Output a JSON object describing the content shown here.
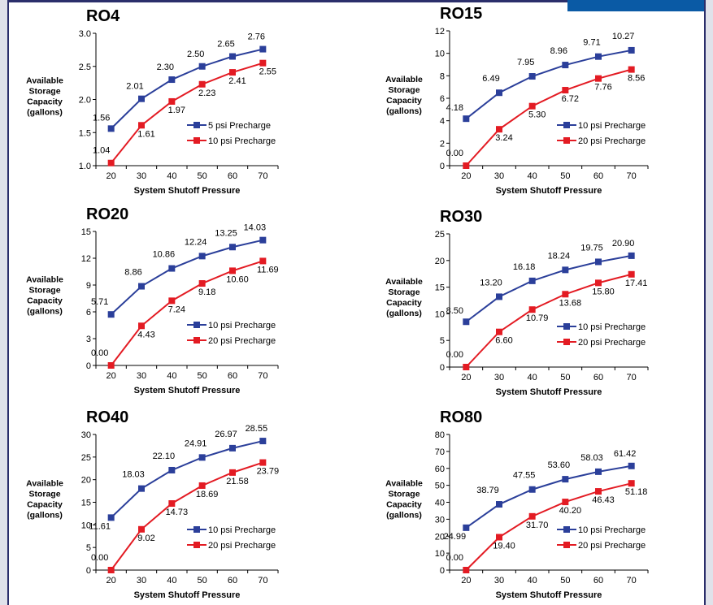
{
  "colors": {
    "series1": "#2b3f9a",
    "series2": "#e31b23",
    "axis": "#000000",
    "frame": "#2b2f6b",
    "accent": "#0a5aa5"
  },
  "chart_data": [
    {
      "type": "line",
      "title": "RO4",
      "xlabel": "System Shutoff Pressure",
      "ylabel": "Available Storage Capacity (gallons)",
      "x": [
        20,
        30,
        40,
        50,
        60,
        70
      ],
      "xticks": [
        "20",
        "30",
        "40",
        "50",
        "60",
        "70"
      ],
      "ylim": [
        1.0,
        3.0
      ],
      "yticks": [
        "1.0",
        "1.5",
        "2.0",
        "2.5",
        "3.0"
      ],
      "legend": "lower-right",
      "series": [
        {
          "name": "5 psi Precharge",
          "values": [
            1.56,
            2.01,
            2.3,
            2.5,
            2.65,
            2.76
          ],
          "labels": [
            "1.56",
            "2.01",
            "2.30",
            "2.50",
            "2.65",
            "2.76"
          ]
        },
        {
          "name": "10 psi Precharge",
          "values": [
            1.04,
            1.61,
            1.97,
            2.23,
            2.41,
            2.55
          ],
          "labels": [
            "1.04",
            "1.61",
            "1.97",
            "2.23",
            "2.41",
            "2.55"
          ]
        }
      ]
    },
    {
      "type": "line",
      "title": "RO15",
      "xlabel": "System Shutoff Pressure",
      "ylabel": "Available Storage Capacity (gallons)",
      "x": [
        20,
        30,
        40,
        50,
        60,
        70
      ],
      "xticks": [
        "20",
        "30",
        "40",
        "50",
        "60",
        "70"
      ],
      "ylim": [
        0,
        12
      ],
      "yticks": [
        "0",
        "2",
        "4",
        "6",
        "8",
        "10",
        "12"
      ],
      "legend": "lower-right",
      "series": [
        {
          "name": "10 psi Precharge",
          "values": [
            4.18,
            6.49,
            7.95,
            8.96,
            9.71,
            10.27
          ],
          "labels": [
            "4.18",
            "6.49",
            "7.95",
            "8.96",
            "9.71",
            "10.27"
          ]
        },
        {
          "name": "20 psi Precharge",
          "values": [
            0.0,
            3.24,
            5.3,
            6.72,
            7.76,
            8.56
          ],
          "labels": [
            "0.00",
            "3.24",
            "5.30",
            "6.72",
            "7.76",
            "8.56"
          ]
        }
      ]
    },
    {
      "type": "line",
      "title": "RO20",
      "xlabel": "System Shutoff Pressure",
      "ylabel": "Available Storage Capacity (gallons)",
      "x": [
        20,
        30,
        40,
        50,
        60,
        70
      ],
      "xticks": [
        "20",
        "30",
        "40",
        "50",
        "60",
        "70"
      ],
      "ylim": [
        0,
        15
      ],
      "yticks": [
        "0",
        "3",
        "6",
        "9",
        "12",
        "15"
      ],
      "legend": "lower-right",
      "series": [
        {
          "name": "10 psi Precharge",
          "values": [
            5.71,
            8.86,
            10.86,
            12.24,
            13.25,
            14.03
          ],
          "labels": [
            "5.71",
            "8.86",
            "10.86",
            "12.24",
            "13.25",
            "14.03"
          ]
        },
        {
          "name": "20 psi Precharge",
          "values": [
            0.0,
            4.43,
            7.24,
            9.18,
            10.6,
            11.69
          ],
          "labels": [
            "0.00",
            "4.43",
            "7.24",
            "9.18",
            "10.60",
            "11.69"
          ]
        }
      ]
    },
    {
      "type": "line",
      "title": "RO30",
      "xlabel": "System Shutoff Pressure",
      "ylabel": "Available Storage Capacity (gallons)",
      "x": [
        20,
        30,
        40,
        50,
        60,
        70
      ],
      "xticks": [
        "20",
        "30",
        "40",
        "50",
        "60",
        "70"
      ],
      "ylim": [
        0,
        25
      ],
      "yticks": [
        "0",
        "5",
        "10",
        "15",
        "20",
        "25"
      ],
      "legend": "lower-right",
      "series": [
        {
          "name": "10 psi Precharge",
          "values": [
            8.5,
            13.2,
            16.18,
            18.24,
            19.75,
            20.9
          ],
          "labels": [
            "8.50",
            "13.20",
            "16.18",
            "18.24",
            "19.75",
            "20.90"
          ]
        },
        {
          "name": "20 psi Precharge",
          "values": [
            0.0,
            6.6,
            10.79,
            13.68,
            15.8,
            17.41
          ],
          "labels": [
            "0.00",
            "6.60",
            "10.79",
            "13.68",
            "15.80",
            "17.41"
          ]
        }
      ]
    },
    {
      "type": "line",
      "title": "RO40",
      "xlabel": "System Shutoff Pressure",
      "ylabel": "Available Storage Capacity (gallons)",
      "x": [
        20,
        30,
        40,
        50,
        60,
        70
      ],
      "xticks": [
        "20",
        "30",
        "40",
        "50",
        "60",
        "70"
      ],
      "ylim": [
        0,
        30
      ],
      "yticks": [
        "0",
        "5",
        "10",
        "15",
        "20",
        "25",
        "30"
      ],
      "legend": "lower-right",
      "series": [
        {
          "name": "10 psi Precharge",
          "values": [
            11.61,
            18.03,
            22.1,
            24.91,
            26.97,
            28.55
          ],
          "labels": [
            "11.61",
            "18.03",
            "22.10",
            "24.91",
            "26.97",
            "28.55"
          ]
        },
        {
          "name": "20 psi Precharge",
          "values": [
            0.0,
            9.02,
            14.73,
            18.69,
            21.58,
            23.79
          ],
          "labels": [
            "0.00",
            "9.02",
            "14.73",
            "18.69",
            "21.58",
            "23.79"
          ]
        }
      ]
    },
    {
      "type": "line",
      "title": "RO80",
      "xlabel": "System Shutoff Pressure",
      "ylabel": "Available Storage Capacity (gallons)",
      "x": [
        20,
        30,
        40,
        50,
        60,
        70
      ],
      "xticks": [
        "20",
        "30",
        "40",
        "50",
        "60",
        "70"
      ],
      "ylim": [
        0,
        80
      ],
      "yticks": [
        "0",
        "10",
        "20",
        "30",
        "40",
        "50",
        "60",
        "70",
        "80"
      ],
      "legend": "lower-right",
      "series": [
        {
          "name": "10 psi Precharge",
          "values": [
            24.99,
            38.79,
            47.55,
            53.6,
            58.03,
            61.42
          ],
          "labels": [
            "24.99",
            "38.79",
            "47.55",
            "53.60",
            "58.03",
            "61.42"
          ]
        },
        {
          "name": "20 psi Precharge",
          "values": [
            0.0,
            19.4,
            31.7,
            40.2,
            46.43,
            51.18
          ],
          "labels": [
            "0.00",
            "19.40",
            "31.70",
            "40.20",
            "46.43",
            "51.18"
          ]
        }
      ]
    }
  ]
}
